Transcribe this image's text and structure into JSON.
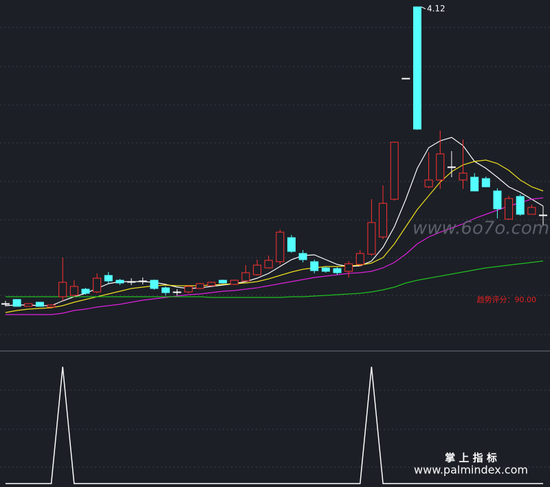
{
  "chart_data": [
    {
      "type": "candlestick",
      "up_color": "#ff3232",
      "down_color": "#54ffff",
      "flat_color": "#ffffff",
      "ylim": [
        2.12,
        4.16
      ],
      "open": [
        2.392,
        2.416,
        2.376,
        2.4,
        2.372,
        2.432,
        2.44,
        2.476,
        2.46,
        2.556,
        2.528,
        2.52,
        2.524,
        2.528,
        2.484,
        2.46,
        2.46,
        2.48,
        2.496,
        2.528,
        2.504,
        2.524,
        2.56,
        2.6,
        2.636,
        2.776,
        2.684,
        2.636,
        2.6,
        2.596,
        2.58,
        2.62,
        2.68,
        2.78,
        3.0,
        3.704,
        4.12,
        3.072,
        3.112,
        3.188,
        3.112,
        3.128,
        3.12,
        3.048,
        2.884,
        3.016,
        2.912,
        2.908
      ],
      "close": [
        2.392,
        2.376,
        2.392,
        2.376,
        2.384,
        2.516,
        2.492,
        2.452,
        2.54,
        2.524,
        2.512,
        2.52,
        2.524,
        2.48,
        2.456,
        2.46,
        2.492,
        2.508,
        2.516,
        2.512,
        2.528,
        2.572,
        2.616,
        2.644,
        2.808,
        2.696,
        2.648,
        2.584,
        2.58,
        2.572,
        2.624,
        2.684,
        2.864,
        2.976,
        3.332,
        3.704,
        3.408,
        3.112,
        3.264,
        3.188,
        3.152,
        3.048,
        3.072,
        2.944,
        3.004,
        2.912,
        2.952,
        2.908
      ],
      "high": [
        2.408,
        2.416,
        2.392,
        2.4,
        2.388,
        2.66,
        2.528,
        2.484,
        2.568,
        2.576,
        2.536,
        2.54,
        2.544,
        2.532,
        2.492,
        2.476,
        2.5,
        2.512,
        2.52,
        2.532,
        2.532,
        2.616,
        2.648,
        2.672,
        2.824,
        2.792,
        2.704,
        2.648,
        2.608,
        2.604,
        2.64,
        2.704,
        3.0,
        3.08,
        3.332,
        3.704,
        4.12,
        3.272,
        3.4,
        3.28,
        3.348,
        3.152,
        3.132,
        3.064,
        3.02,
        3.028,
        2.968,
        2.96
      ],
      "low": [
        2.376,
        2.376,
        2.376,
        2.376,
        2.368,
        2.408,
        2.432,
        2.444,
        2.452,
        2.508,
        2.5,
        2.5,
        2.504,
        2.472,
        2.44,
        2.44,
        2.452,
        2.476,
        2.492,
        2.508,
        2.5,
        2.52,
        2.556,
        2.596,
        2.62,
        2.688,
        2.632,
        2.568,
        2.572,
        2.56,
        2.544,
        2.608,
        2.672,
        2.768,
        2.992,
        3.704,
        3.404,
        3.064,
        3.06,
        3.128,
        3.06,
        3.048,
        3.072,
        2.888,
        2.88,
        2.904,
        2.912,
        2.848
      ],
      "max_label": "4.12",
      "lines": [
        {
          "color": "#ffffff",
          "values": [
            2.38,
            2.384,
            2.384,
            2.38,
            2.38,
            2.408,
            2.432,
            2.452,
            2.48,
            2.508,
            2.52,
            2.52,
            2.52,
            2.516,
            2.504,
            2.488,
            2.48,
            2.484,
            2.492,
            2.5,
            2.508,
            2.52,
            2.54,
            2.568,
            2.608,
            2.648,
            2.672,
            2.676,
            2.648,
            2.62,
            2.608,
            2.612,
            2.64,
            2.72,
            2.84,
            3.0,
            3.18,
            3.3,
            3.34,
            3.36,
            3.312,
            3.22,
            3.18,
            3.128,
            3.072,
            3.04,
            3.0,
            2.96
          ]
        },
        {
          "color": "#f0e020",
          "values": [
            2.34,
            2.352,
            2.36,
            2.364,
            2.368,
            2.38,
            2.4,
            2.416,
            2.432,
            2.448,
            2.464,
            2.48,
            2.488,
            2.496,
            2.5,
            2.496,
            2.496,
            2.496,
            2.5,
            2.504,
            2.508,
            2.512,
            2.52,
            2.536,
            2.556,
            2.576,
            2.592,
            2.6,
            2.608,
            2.608,
            2.612,
            2.616,
            2.628,
            2.66,
            2.74,
            2.84,
            2.94,
            3.02,
            3.1,
            3.16,
            3.2,
            3.22,
            3.228,
            3.208,
            3.168,
            3.112,
            3.072,
            3.048
          ]
        },
        {
          "color": "#e020e0",
          "values": [
            2.328,
            2.328,
            2.328,
            2.328,
            2.328,
            2.336,
            2.352,
            2.36,
            2.372,
            2.38,
            2.388,
            2.4,
            2.412,
            2.42,
            2.428,
            2.436,
            2.444,
            2.448,
            2.456,
            2.464,
            2.468,
            2.476,
            2.484,
            2.496,
            2.508,
            2.52,
            2.532,
            2.544,
            2.552,
            2.56,
            2.568,
            2.572,
            2.58,
            2.6,
            2.632,
            2.68,
            2.74,
            2.78,
            2.808,
            2.832,
            2.856,
            2.888,
            2.912,
            2.936,
            2.96,
            2.98,
            3.0,
            3.008
          ]
        },
        {
          "color": "#20c020",
          "values": [
            2.432,
            2.432,
            2.432,
            2.432,
            2.432,
            2.432,
            2.432,
            2.432,
            2.432,
            2.432,
            2.432,
            2.432,
            2.432,
            2.432,
            2.432,
            2.432,
            2.432,
            2.432,
            2.428,
            2.428,
            2.428,
            2.428,
            2.428,
            2.428,
            2.428,
            2.432,
            2.432,
            2.436,
            2.44,
            2.444,
            2.448,
            2.452,
            2.46,
            2.472,
            2.488,
            2.512,
            2.528,
            2.54,
            2.552,
            2.564,
            2.576,
            2.588,
            2.6,
            2.608,
            2.616,
            2.624,
            2.632,
            2.64
          ]
        }
      ],
      "annotation": "趋势评分：90.00"
    },
    {
      "type": "line",
      "color": "#ffffff",
      "ylim": [
        0,
        1
      ],
      "values": [
        0,
        0,
        0,
        0,
        0,
        1,
        0,
        0,
        0,
        0,
        0,
        0,
        0,
        0,
        0,
        0,
        0,
        0,
        0,
        0,
        0,
        0,
        0,
        0,
        0,
        0,
        0,
        0,
        0,
        0,
        0,
        0,
        1,
        0,
        0,
        0,
        0,
        0,
        0,
        0,
        0,
        0,
        0,
        0,
        0,
        0,
        0,
        0
      ]
    }
  ],
  "watermarks": [
    "www.6o7o.com",
    "掌 上 指 标",
    "www.palmindex.com"
  ]
}
